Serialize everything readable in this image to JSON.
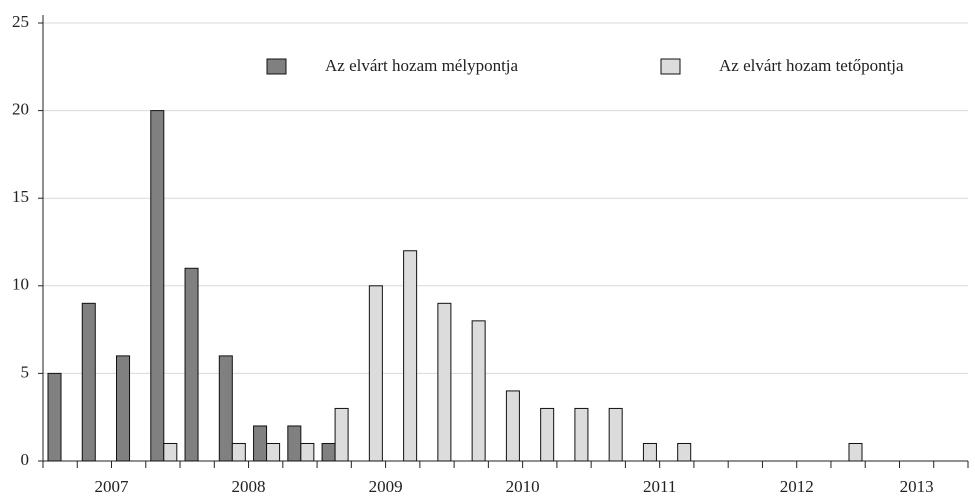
{
  "chart_data": {
    "type": "bar",
    "categories": [
      "2007",
      null,
      null,
      null,
      "2008",
      null,
      null,
      null,
      "2009",
      null,
      null,
      null,
      "2010",
      null,
      null,
      null,
      "2011",
      null,
      null,
      null,
      "2012",
      null,
      null,
      null,
      "2013",
      null,
      null
    ],
    "series": [
      {
        "name": "Az elvárt hozam mélypontja",
        "color": "#808080",
        "values": [
          5,
          9,
          6,
          20,
          11,
          6,
          2,
          2,
          1,
          0,
          0,
          0,
          0,
          0,
          0,
          0,
          0,
          0,
          0,
          0,
          0,
          0,
          0,
          0,
          0,
          0,
          0
        ]
      },
      {
        "name": "Az elvárt hozam tetőpontja",
        "color": "#dcdcdc",
        "values": [
          0,
          0,
          0,
          1,
          0,
          1,
          1,
          1,
          3,
          10,
          12,
          9,
          8,
          4,
          3,
          3,
          3,
          1,
          1,
          0,
          0,
          0,
          0,
          1,
          0,
          0,
          0
        ]
      }
    ],
    "ylim": [
      0,
      25
    ],
    "yticks": [
      0,
      5,
      10,
      15,
      20,
      25
    ],
    "grid": true,
    "legend": "top"
  }
}
